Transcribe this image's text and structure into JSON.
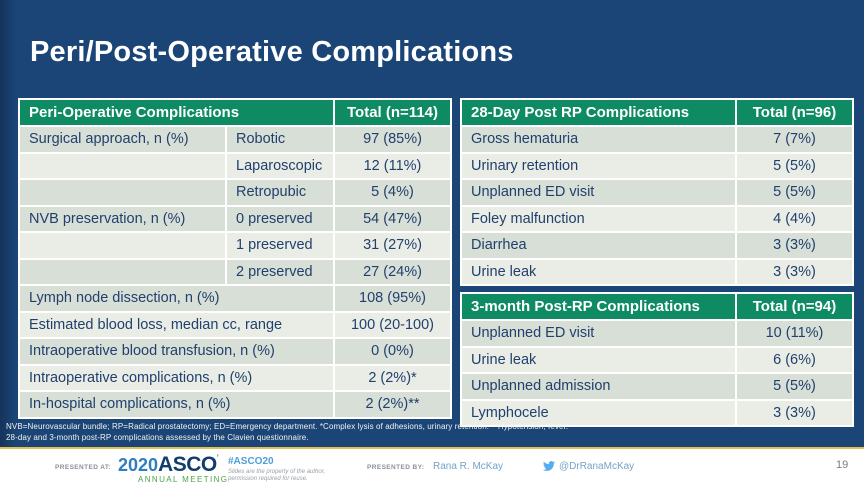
{
  "slide": {
    "title": "Peri/Post-Operative Complications",
    "page_number": "19"
  },
  "left_table": {
    "title": "Peri-Operative Complications",
    "total_label": "Total (n=114)",
    "rows": [
      {
        "label": "Surgical approach, n (%)",
        "sub": "Robotic",
        "value": "97 (85%)"
      },
      {
        "label": "",
        "sub": "Laparoscopic",
        "value": "12 (11%)"
      },
      {
        "label": "",
        "sub": "Retropubic",
        "value": "5 (4%)"
      },
      {
        "label": "NVB preservation, n (%)",
        "sub": "0 preserved",
        "value": "54 (47%)"
      },
      {
        "label": "",
        "sub": "1 preserved",
        "value": "31 (27%)"
      },
      {
        "label": "",
        "sub": "2 preserved",
        "value": "27 (24%)"
      },
      {
        "label": "Lymph node dissection, n (%)",
        "sub": null,
        "value": "108 (95%)"
      },
      {
        "label": "Estimated blood loss, median cc, range",
        "sub": null,
        "value": "100 (20-100)"
      },
      {
        "label": "Intraoperative blood transfusion, n (%)",
        "sub": null,
        "value": "0 (0%)"
      },
      {
        "label": "Intraoperative complications, n (%)",
        "sub": null,
        "value": "2 (2%)*"
      },
      {
        "label": "In-hospital complications, n (%)",
        "sub": null,
        "value": "2 (2%)**"
      }
    ]
  },
  "post28_table": {
    "title": "28-Day Post RP Complications",
    "total_label": "Total (n=96)",
    "rows": [
      {
        "label": "Gross hematuria",
        "sub": null,
        "value": "7 (7%)"
      },
      {
        "label": "Urinary retention",
        "sub": null,
        "value": "5 (5%)"
      },
      {
        "label": "Unplanned ED visit",
        "sub": null,
        "value": "5 (5%)"
      },
      {
        "label": "Foley malfunction",
        "sub": null,
        "value": "4 (4%)"
      },
      {
        "label": "Diarrhea",
        "sub": null,
        "value": "3 (3%)"
      },
      {
        "label": "Urine leak",
        "sub": null,
        "value": "3 (3%)"
      }
    ]
  },
  "post3m_table": {
    "title": "3-month Post-RP Complications",
    "total_label": "Total (n=94)",
    "rows": [
      {
        "label": "Unplanned ED visit",
        "sub": null,
        "value": "10 (11%)"
      },
      {
        "label": "Urine leak",
        "sub": null,
        "value": "6 (6%)"
      },
      {
        "label": "Unplanned admission",
        "sub": null,
        "value": "5 (5%)"
      },
      {
        "label": "Lymphocele",
        "sub": null,
        "value": "3 (3%)"
      }
    ]
  },
  "footnotes": {
    "line1": "NVB=Neurovascular bundle; RP=Radical prostatectomy; ED=Emergency department. *Complex lysis of adhesions, urinary retention. **Hypotension, fever.",
    "line2": "28-day and 3-month post-RP complications assessed by the Clavien questionnaire."
  },
  "footer": {
    "presented_at_label": "PRESENTED AT:",
    "logo_year": "2020",
    "logo_asco": "ASCO",
    "logo_mark": "’",
    "logo_annual_meeting": "ANNUAL MEETING",
    "hashtag": "#ASCO20",
    "reuse_line1": "Slides are the property of the author,",
    "reuse_line2": "permission required for reuse.",
    "presented_by_label": "PRESENTED BY:",
    "presenter": "Rana R. McKay",
    "twitter_handle": "@DrRanaMcKay"
  },
  "colors": {
    "background_blue": "#1B4577",
    "header_green": "#0E8B63",
    "row_dark": "#D8DFD6",
    "row_light": "#EAEDE5",
    "table_text_navy": "#21406E",
    "divider_gold": "#E2C04F",
    "asco_blue": "#2F7EC0",
    "asco_navy": "#123E6C",
    "asco_green": "#4FA347",
    "twitter_blue": "#55ACEE",
    "footer_lightblue": "#74A3C7"
  }
}
